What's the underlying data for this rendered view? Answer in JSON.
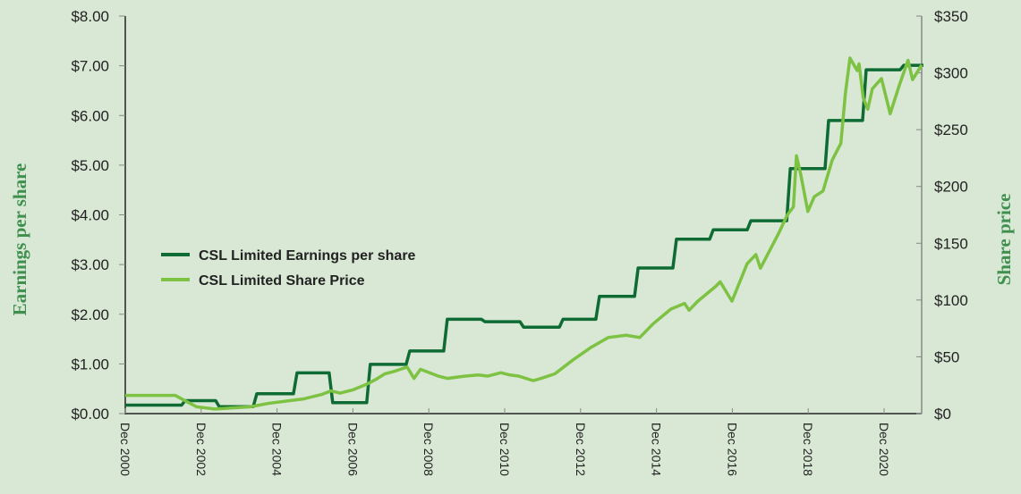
{
  "chart_data": {
    "type": "line",
    "title": "",
    "xlabel": "",
    "ylabel_left": "Earnings per share",
    "ylabel_right": "Share price",
    "x_units": "decimal year",
    "xlim": [
      2000.92,
      2021.91
    ],
    "ylim_left": [
      0,
      8
    ],
    "ylim_right": [
      0,
      350
    ],
    "x_tick_labels": [
      "Dec 2000",
      "Dec 2002",
      "Dec 2004",
      "Dec 2006",
      "Dec 2008",
      "Dec 2010",
      "Dec 2012",
      "Dec 2014",
      "Dec 2016",
      "Dec 2018",
      "Dec 2020"
    ],
    "y_left_tick_labels": [
      "$0.00",
      "$1.00",
      "$2.00",
      "$3.00",
      "$4.00",
      "$5.00",
      "$6.00",
      "$7.00",
      "$8.00"
    ],
    "y_right_tick_labels": [
      "$0",
      "$50",
      "$100",
      "$150",
      "$200",
      "$250",
      "$300",
      "$350"
    ],
    "grid": false,
    "legend_position": "center-left",
    "series": [
      {
        "name": "CSL Limited Earnings per share",
        "axis": "left",
        "step": true,
        "color": "#0e6b33",
        "x": [
          2000.92,
          2002.45,
          2003.35,
          2004.34,
          2005.4,
          2006.34,
          2007.33,
          2008.37,
          2009.36,
          2010.35,
          2011.37,
          2012.41,
          2013.37,
          2014.39,
          2015.4,
          2016.37,
          2017.36,
          2018.4,
          2019.41,
          2020.4,
          2021.39,
          2021.91
        ],
        "y": [
          0.17,
          0.26,
          0.14,
          0.4,
          0.82,
          0.22,
          0.99,
          1.26,
          1.9,
          1.85,
          1.74,
          1.9,
          2.36,
          2.93,
          3.51,
          3.7,
          3.88,
          4.93,
          5.9,
          6.92,
          7.01,
          7.01
        ]
      },
      {
        "name": "CSL Limited Share Price",
        "axis": "right",
        "step": false,
        "color": "#7dc242",
        "x": [
          2000.92,
          2002.24,
          2002.57,
          2002.8,
          2003.28,
          2003.75,
          2004.22,
          2004.69,
          2005.16,
          2005.63,
          2006.11,
          2006.34,
          2006.58,
          2006.93,
          2007.29,
          2007.52,
          2007.76,
          2007.99,
          2008.35,
          2008.53,
          2008.7,
          2009.17,
          2009.41,
          2009.88,
          2010.23,
          2010.47,
          2010.82,
          2011.06,
          2011.29,
          2011.67,
          2011.88,
          2012.24,
          2012.71,
          2013.18,
          2013.65,
          2014.12,
          2014.48,
          2014.83,
          2015.3,
          2015.66,
          2015.78,
          2016.01,
          2016.48,
          2016.6,
          2016.91,
          2017.31,
          2017.54,
          2017.66,
          2018.13,
          2018.37,
          2018.53,
          2018.61,
          2018.72,
          2018.91,
          2019.08,
          2019.31,
          2019.55,
          2019.78,
          2019.9,
          2020.02,
          2020.21,
          2020.26,
          2020.37,
          2020.49,
          2020.61,
          2020.85,
          2021.08,
          2021.32,
          2021.55,
          2021.67,
          2021.91
        ],
        "y": [
          16,
          16,
          10,
          6,
          4,
          5,
          6,
          9,
          11,
          13,
          17,
          20,
          18,
          21,
          26,
          30,
          35,
          37,
          41,
          31,
          39,
          33,
          31,
          33,
          34,
          33,
          36,
          34,
          33,
          29,
          31,
          35,
          47,
          58,
          67,
          69,
          67,
          79,
          92,
          97,
          91,
          99,
          112,
          116,
          99,
          132,
          140,
          128,
          158,
          175,
          182,
          227,
          211,
          178,
          191,
          196,
          223,
          238,
          282,
          313,
          302,
          308,
          278,
          268,
          286,
          295,
          264,
          289,
          311,
          294,
          307
        ]
      }
    ]
  }
}
